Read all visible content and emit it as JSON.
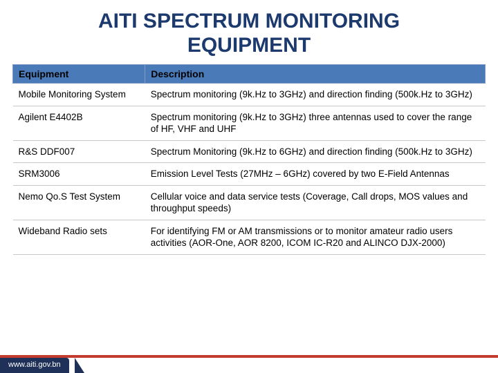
{
  "title_line1": "AITI SPECTRUM MONITORING",
  "title_line2": "EQUIPMENT",
  "colors": {
    "navy": "#1c3a6e",
    "header_blue": "#4a7ab8",
    "accent_red": "#c23b2e",
    "footer_bg": "#1f3158",
    "border_gray": "#c8c8c8"
  },
  "table": {
    "headers": {
      "equipment": "Equipment",
      "description": "Description"
    },
    "column_widths_pct": [
      28,
      72
    ],
    "header_fontsize": 14,
    "cell_fontsize": 13.5,
    "rows": [
      {
        "equipment": "Mobile Monitoring System",
        "description": "Spectrum monitoring (9k.Hz to 3GHz) and direction finding (500k.Hz to 3GHz)"
      },
      {
        "equipment": "Agilent E4402B",
        "description": "Spectrum monitoring (9k.Hz to 3GHz) three antennas used to cover the range of HF, VHF and UHF"
      },
      {
        "equipment": "R&S DDF007",
        "description": "Spectrum Monitoring (9k.Hz to 6GHz) and direction finding (500k.Hz to 3GHz)"
      },
      {
        "equipment": "SRM3006",
        "description": "Emission Level Tests (27MHz – 6GHz) covered by two E-Field Antennas"
      },
      {
        "equipment": "Nemo Qo.S Test System",
        "description": "Cellular voice and data service tests (Coverage, Call drops, MOS values and throughput speeds)"
      },
      {
        "equipment": "Wideband Radio sets",
        "description": "For identifying FM or AM transmissions or to monitor amateur radio users activities (AOR-One, AOR 8200, ICOM IC-R20 and ALINCO DJX-2000)"
      }
    ]
  },
  "footer_url": "www.aiti.gov.bn"
}
